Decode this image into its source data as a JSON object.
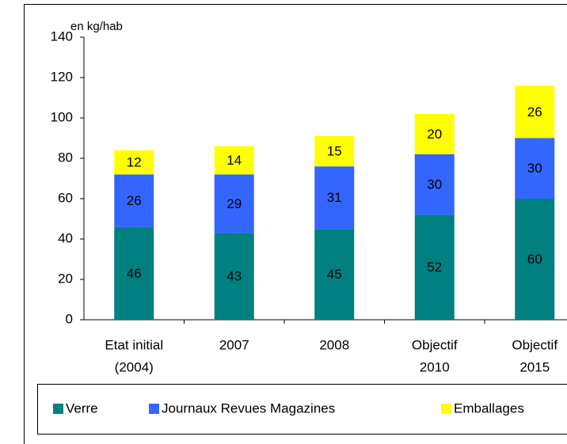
{
  "chart_data": {
    "type": "stacked_bar",
    "y_label": "en kg/hab",
    "categories": [
      [
        "Etat initial",
        "(2004)"
      ],
      [
        "2007"
      ],
      [
        "2008"
      ],
      [
        "Objectif",
        "2010"
      ],
      [
        "Objectif",
        "2015"
      ]
    ],
    "series": [
      {
        "name": "Verre",
        "color": "#008080",
        "values": [
          46,
          43,
          45,
          52,
          60
        ]
      },
      {
        "name": "Journaux Revues Magazines",
        "color": "#3366ff",
        "values": [
          26,
          29,
          31,
          30,
          30
        ]
      },
      {
        "name": "Emballages",
        "color": "#ffff00",
        "values": [
          12,
          14,
          15,
          20,
          26
        ]
      }
    ],
    "ylim": [
      0,
      140
    ],
    "yticks": [
      0,
      20,
      40,
      60,
      80,
      100,
      120,
      140
    ],
    "legend": "bottom"
  }
}
